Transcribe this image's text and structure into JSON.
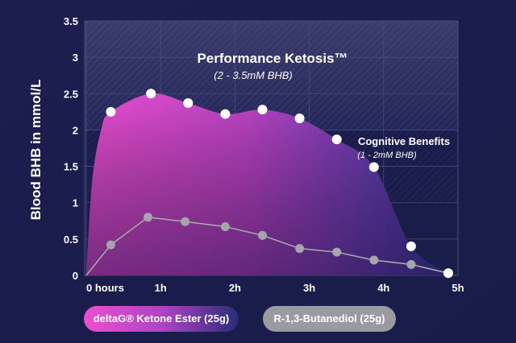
{
  "chart_data": {
    "type": "area",
    "title": "Performance Ketosis™",
    "subtitle": "(2 - 3.5mM BHB)",
    "annotation": {
      "title": "Cognitive Benefits",
      "subtitle": "(1 - 2mM BHB)"
    },
    "ylabel": "Blood BHB in mmol/L",
    "xlabel": "",
    "ylim": [
      0,
      3.5
    ],
    "xlim": [
      0,
      5
    ],
    "yticks": [
      "0",
      "0.5",
      "1",
      "1.5",
      "2",
      "2.5",
      "3",
      "3.5"
    ],
    "xticks": [
      "0 hours",
      "1h",
      "2h",
      "3h",
      "4h",
      "5h"
    ],
    "grid": true,
    "legend_position": "bottom",
    "series": [
      {
        "name": "deltaG® Ketone Ester (25g)",
        "color": "#ec4fd1",
        "x": [
          0.33,
          0.87,
          1.37,
          1.87,
          2.37,
          2.87,
          3.37,
          3.87,
          4.37,
          4.87
        ],
        "y": [
          2.25,
          2.5,
          2.37,
          2.22,
          2.28,
          2.16,
          1.87,
          1.49,
          0.4,
          0.03
        ]
      },
      {
        "name": "R-1,3-Butanediol (25g)",
        "color": "#a6a5ab",
        "x": [
          0.33,
          0.83,
          1.33,
          1.87,
          2.37,
          2.87,
          3.37,
          3.87,
          4.37,
          4.87
        ],
        "y": [
          0.42,
          0.8,
          0.74,
          0.67,
          0.55,
          0.37,
          0.32,
          0.21,
          0.15,
          0.03
        ]
      }
    ]
  },
  "legend": {
    "items": [
      {
        "label": "deltaG® Ketone Ester (25g)"
      },
      {
        "label": "R-1,3-Butanediol (25g)"
      }
    ]
  }
}
